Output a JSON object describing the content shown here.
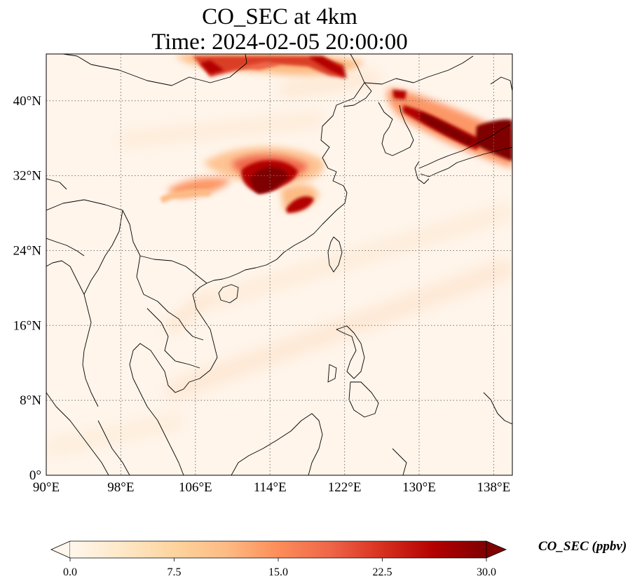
{
  "title": {
    "line1": "CO_SEC at 4km",
    "line2": "Time: 2024-02-05 20:00:00"
  },
  "map": {
    "projection": "PlateCarree",
    "lon_range": [
      90,
      140
    ],
    "lat_range": [
      0,
      45
    ],
    "lon_ticks": [
      {
        "value": 90,
        "label": "90°E"
      },
      {
        "value": 98,
        "label": "98°E"
      },
      {
        "value": 106,
        "label": "106°E"
      },
      {
        "value": 114,
        "label": "114°E"
      },
      {
        "value": 122,
        "label": "122°E"
      },
      {
        "value": 130,
        "label": "130°E"
      },
      {
        "value": 138,
        "label": "138°E"
      }
    ],
    "lat_ticks": [
      {
        "value": 0,
        "label": "0°"
      },
      {
        "value": 8,
        "label": "8°N"
      },
      {
        "value": 16,
        "label": "16°N"
      },
      {
        "value": 24,
        "label": "24°N"
      },
      {
        "value": 32,
        "label": "32°N"
      },
      {
        "value": 40,
        "label": "40°N"
      }
    ],
    "gridlines": "dotted grey",
    "background_color": "#fff5eb",
    "coastline_color": "#000000"
  },
  "colorbar": {
    "label": "CO_SEC (ppbv)",
    "cmap": "OrRd",
    "vmin": 0.0,
    "vmax": 30.0,
    "ticks": [
      "0.0",
      "7.5",
      "15.0",
      "22.5",
      "30.0"
    ],
    "extend": "both",
    "colors": [
      "#fff7ec",
      "#fee8c8",
      "#fdd49e",
      "#fdbb84",
      "#fc8d59",
      "#ef6548",
      "#d7301f",
      "#b30000",
      "#7f0000"
    ]
  },
  "plumes": [
    {
      "name": "central-china",
      "lon": 113.5,
      "lat": 32.3,
      "value": 30
    },
    {
      "name": "central-china-west",
      "lon": 108.5,
      "lat": 33.0,
      "value": 16
    },
    {
      "name": "sichuan-streak",
      "lon": 103.5,
      "lat": 31.0,
      "value": 12
    },
    {
      "name": "east-china",
      "lon": 117.2,
      "lat": 29.2,
      "value": 28
    },
    {
      "name": "north-china-plain",
      "lon": 116.0,
      "lat": 44.0,
      "value": 26
    },
    {
      "name": "korea",
      "lon": 128.0,
      "lat": 41.0,
      "value": 24
    },
    {
      "name": "japan-sea",
      "lon": 132.5,
      "lat": 38.0,
      "value": 29
    },
    {
      "name": "japan",
      "lon": 137.5,
      "lat": 35.8,
      "value": 30
    }
  ]
}
